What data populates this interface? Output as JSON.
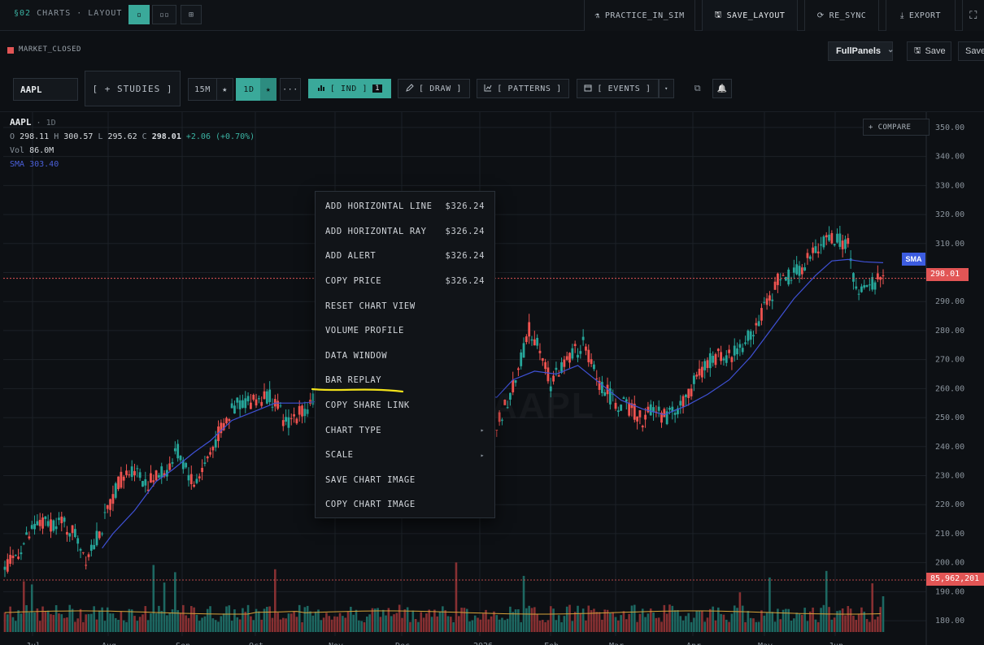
{
  "brand": {
    "section": "§02",
    "title": "CHARTS · LAYOUT"
  },
  "layout_buttons": [
    {
      "name": "single",
      "glyph": "▫"
    },
    {
      "name": "dual",
      "glyph": "▫▫"
    },
    {
      "name": "quad",
      "glyph": "⊞"
    }
  ],
  "top_actions": [
    {
      "name": "practice-in-sim",
      "icon": "flask-icon",
      "glyph": "⚗",
      "label": "PRACTICE_IN_SIM"
    },
    {
      "name": "save-layout",
      "icon": "save-icon",
      "glyph": "🖫",
      "label": "SAVE_LAYOUT"
    },
    {
      "name": "re-sync",
      "icon": "sync-icon",
      "glyph": "⟳",
      "label": "RE_SYNC"
    },
    {
      "name": "export",
      "icon": "download-icon",
      "glyph": "⤓",
      "label": "EXPORT"
    }
  ],
  "fullscreen_glyph": "⛶",
  "status": {
    "market": "MARKET_CLOSED",
    "market_color": "#e25555"
  },
  "layout_select": {
    "value": "FullPanels",
    "caret": "⌄"
  },
  "save_buttons": [
    {
      "label": "Save",
      "glyph": "🖫"
    },
    {
      "label": "Save"
    }
  ],
  "toolbar": {
    "ticker": "AAPL",
    "studies": "[ + STUDIES ]",
    "tf_15m": "15M",
    "tf_1d": "1D",
    "star": "★",
    "more": "···",
    "ind": "[ IND ]",
    "ind_count": "1",
    "draw": "[ DRAW ]",
    "patterns": "[ PATTERNS ]",
    "events": "[ EVENTS ]",
    "caret": "▾",
    "popout_glyph": "⧉",
    "bell_glyph": "🔔"
  },
  "legend": {
    "symbol": "AAPL",
    "timeframe": "· 1D",
    "o_label": "O",
    "o": "298.11",
    "h_label": "H",
    "h": "300.57",
    "l_label": "L",
    "l": "295.62",
    "c_label": "C",
    "c": "298.01",
    "change": "+2.06 (+0.70%)",
    "vol_label": "Vol",
    "vol": "86.0M",
    "sma_label": "SMA",
    "sma": "303.40"
  },
  "compare": {
    "label": "+ COMPARE"
  },
  "watermark": "AAPL",
  "sma_tag": "SMA",
  "last_price_tag": "298.01",
  "volume_tag": "85,962,201",
  "colors": {
    "up": "#26a69a",
    "down": "#ef5350",
    "sma": "#3f51d6",
    "vol_ma": "#d8a33a",
    "accent": "#3aa99a"
  },
  "context_menu": [
    {
      "label": "ADD HORIZONTAL LINE",
      "shortcut": "$326.24"
    },
    {
      "label": "ADD HORIZONTAL RAY",
      "shortcut": "$326.24"
    },
    {
      "label": "ADD ALERT",
      "shortcut": "$326.24"
    },
    {
      "label": "COPY PRICE",
      "shortcut": "$326.24"
    },
    {
      "label": "RESET CHART VIEW",
      "shortcut": ""
    },
    {
      "label": "VOLUME PROFILE",
      "shortcut": ""
    },
    {
      "label": "DATA WINDOW",
      "shortcut": ""
    },
    {
      "label": "BAR REPLAY",
      "shortcut": ""
    },
    {
      "label": "COPY SHARE LINK",
      "shortcut": ""
    },
    {
      "label": "CHART TYPE",
      "shortcut": "",
      "submenu": "▸"
    },
    {
      "label": "SCALE",
      "shortcut": "",
      "submenu": "▸"
    },
    {
      "label": "SAVE CHART IMAGE",
      "shortcut": ""
    },
    {
      "label": "COPY CHART IMAGE",
      "shortcut": ""
    }
  ],
  "chart_data": {
    "type": "candlestick",
    "symbol": "AAPL",
    "timeframe": "1D",
    "y_ticks": [
      "350.00",
      "340.00",
      "330.00",
      "320.00",
      "310.00",
      "300.00",
      "290.00",
      "280.00",
      "270.00",
      "260.00",
      "250.00",
      "240.00",
      "230.00",
      "220.00",
      "210.00",
      "200.00",
      "190.00",
      "180.00"
    ],
    "ylim": [
      177.5,
      352.5
    ],
    "x_ticks": [
      "Jul",
      "Aug",
      "Sep",
      "Oct",
      "Nov",
      "Dec",
      "2026",
      "Feb",
      "Mar",
      "Apr",
      "May",
      "Jun"
    ],
    "last_price": 298.01,
    "price_path": [
      [
        0,
        197
      ],
      [
        5,
        204
      ],
      [
        12,
        213
      ],
      [
        20,
        214
      ],
      [
        26,
        210
      ],
      [
        30,
        202
      ],
      [
        36,
        212
      ],
      [
        42,
        228
      ],
      [
        48,
        233
      ],
      [
        52,
        227
      ],
      [
        60,
        232
      ],
      [
        64,
        238
      ],
      [
        70,
        227
      ],
      [
        74,
        234
      ],
      [
        80,
        246
      ],
      [
        86,
        255
      ],
      [
        92,
        256
      ],
      [
        98,
        258
      ],
      [
        104,
        248
      ],
      [
        112,
        254
      ],
      [
        118,
        262
      ],
      [
        126,
        258
      ],
      [
        130,
        260
      ],
      [
        136,
        262
      ],
      [
        142,
        266
      ],
      [
        150,
        270
      ],
      [
        156,
        268
      ],
      [
        160,
        262
      ],
      [
        166,
        258
      ],
      [
        170,
        257
      ],
      [
        175,
        259
      ],
      [
        182,
        247
      ],
      [
        188,
        260
      ],
      [
        194,
        280
      ],
      [
        198,
        275
      ],
      [
        202,
        262
      ],
      [
        208,
        270
      ],
      [
        214,
        275
      ],
      [
        220,
        262
      ],
      [
        226,
        255
      ],
      [
        232,
        253
      ],
      [
        236,
        249
      ],
      [
        240,
        254
      ],
      [
        244,
        250
      ],
      [
        250,
        254
      ],
      [
        256,
        263
      ],
      [
        262,
        271
      ],
      [
        268,
        271
      ],
      [
        274,
        276
      ],
      [
        280,
        285
      ],
      [
        286,
        297
      ],
      [
        292,
        299
      ],
      [
        298,
        305
      ],
      [
        304,
        312
      ],
      [
        308,
        311
      ],
      [
        312,
        310
      ],
      [
        314,
        298
      ],
      [
        316,
        292
      ],
      [
        318,
        294
      ],
      [
        322,
        297
      ],
      [
        325,
        298
      ]
    ],
    "sma_path": [
      [
        36,
        205
      ],
      [
        40,
        210
      ],
      [
        48,
        218
      ],
      [
        56,
        228
      ],
      [
        62,
        232
      ],
      [
        70,
        238
      ],
      [
        76,
        242
      ],
      [
        84,
        249
      ],
      [
        92,
        252
      ],
      [
        100,
        255
      ],
      [
        110,
        255
      ],
      [
        120,
        256
      ],
      [
        130,
        258
      ],
      [
        140,
        259
      ],
      [
        150,
        264
      ],
      [
        160,
        267
      ],
      [
        168,
        262
      ],
      [
        175,
        258
      ],
      [
        182,
        257
      ],
      [
        188,
        263
      ],
      [
        196,
        266
      ],
      [
        204,
        265
      ],
      [
        212,
        268
      ],
      [
        220,
        262
      ],
      [
        228,
        256
      ],
      [
        236,
        253
      ],
      [
        244,
        251
      ],
      [
        252,
        254
      ],
      [
        260,
        258
      ],
      [
        268,
        263
      ],
      [
        276,
        271
      ],
      [
        284,
        281
      ],
      [
        292,
        291
      ],
      [
        300,
        299
      ],
      [
        306,
        304
      ],
      [
        312,
        304.5
      ],
      [
        318,
        303.7
      ],
      [
        325,
        303.4
      ]
    ],
    "volume_tag": "85,962,201"
  }
}
